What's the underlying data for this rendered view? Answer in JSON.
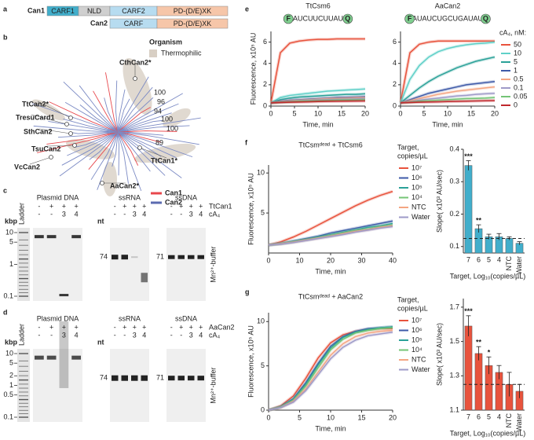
{
  "panels": [
    "a",
    "b",
    "c",
    "d",
    "e",
    "f",
    "g"
  ],
  "domains": [
    {
      "name": "Can1",
      "parts": [
        "CARF1",
        "NLD",
        "CARF2",
        "PD-(D/E)XK"
      ]
    },
    {
      "name": "Can2",
      "parts": [
        "CARF",
        "PD-(D/E)XK"
      ]
    }
  ],
  "tree": {
    "legend_title": "Organism",
    "thermophilic": "Thermophilic",
    "leaves": [
      "CthCan2*",
      "TtCan2*",
      "TresuCard1",
      "SthCan2",
      "TsuCan2",
      "VcCan2",
      "TtCan1*",
      "AaCan2*"
    ],
    "support": [
      100,
      96,
      94,
      100,
      100,
      89
    ],
    "groups": [
      "Can1",
      "Can2"
    ],
    "group_colors": [
      "#e8474c",
      "#5b6bb0"
    ]
  },
  "gels": [
    {
      "ladder": "Ladder",
      "enzyme": "TtCan1",
      "cofactor": "cA₄",
      "enzyme_signs": [
        "-",
        "+",
        "+",
        "+"
      ],
      "cofactor_signs": [
        "-",
        "-",
        "3",
        "4"
      ],
      "buffer": "Mn²⁺-buffer",
      "dna": {
        "title": "Plasmid DNA",
        "unit": "kbp",
        "markers": [
          10,
          5,
          1,
          0.1
        ]
      },
      "rna": {
        "title": "ssRNA",
        "unit": "nt",
        "marker": 74
      },
      "ssdna": {
        "title": "ssDNA",
        "marker": 71
      }
    },
    {
      "ladder": "Ladder",
      "enzyme": "AaCan2",
      "cofactor": "cA₄",
      "enzyme_signs": [
        "-",
        "+",
        "+",
        "+"
      ],
      "cofactor_signs": [
        "-",
        "-",
        "3",
        "4"
      ],
      "buffer": "Mn²⁺-buffer",
      "dna": {
        "title": "Plasmid DNA",
        "unit": "kbp",
        "markers": [
          10,
          5,
          2,
          1,
          0.5,
          0.1
        ]
      },
      "rna": {
        "title": "ssRNA",
        "unit": "nt",
        "marker": 74
      },
      "ssdna": {
        "title": "ssDNA",
        "marker": 71
      }
    }
  ],
  "chart_data": [
    {
      "type": "line",
      "title": "TtCsm6",
      "probe": {
        "fluor": "F",
        "sequence": "-AUCUUCUUAU-",
        "quencher": "Q"
      },
      "xlabel": "Time, min",
      "ylabel": "Fluorescence, x10⁵ AU",
      "x": [
        0,
        2,
        4,
        6,
        8,
        10,
        12,
        14,
        16,
        18,
        20
      ],
      "xlim": [
        0,
        20
      ],
      "xticks": [
        0,
        5,
        10,
        15,
        20
      ],
      "ylim": [
        0,
        7
      ],
      "yticks": [
        0,
        2,
        4,
        6
      ],
      "series": [
        {
          "color": "#e8533d",
          "values": [
            0.3,
            5.0,
            5.9,
            6.1,
            6.2,
            6.25,
            6.25,
            6.3,
            6.3,
            6.3,
            6.3
          ]
        },
        {
          "color": "#5fd0c8",
          "values": [
            0.3,
            0.8,
            1.0,
            1.1,
            1.2,
            1.3,
            1.4,
            1.45,
            1.5,
            1.55,
            1.6
          ]
        },
        {
          "color": "#2aa198",
          "values": [
            0.3,
            0.6,
            0.75,
            0.85,
            0.9,
            0.95,
            1.0,
            1.05,
            1.1,
            1.1,
            1.15
          ]
        },
        {
          "color": "#3e5aa8",
          "values": [
            0.3,
            0.45,
            0.55,
            0.6,
            0.65,
            0.7,
            0.75,
            0.8,
            0.82,
            0.85,
            0.88
          ]
        },
        {
          "color": "#f4a582",
          "values": [
            0.3,
            0.4,
            0.5,
            0.55,
            0.6,
            0.65,
            0.7,
            0.72,
            0.75,
            0.78,
            0.8
          ]
        },
        {
          "color": "#9e9ac8",
          "values": [
            0.3,
            0.38,
            0.45,
            0.5,
            0.55,
            0.58,
            0.6,
            0.62,
            0.65,
            0.67,
            0.7
          ]
        },
        {
          "color": "#74c476",
          "values": [
            0.3,
            0.35,
            0.4,
            0.45,
            0.48,
            0.5,
            0.52,
            0.55,
            0.57,
            0.58,
            0.6
          ]
        },
        {
          "color": "#c0282d",
          "values": [
            0.3,
            0.33,
            0.36,
            0.38,
            0.4,
            0.42,
            0.44,
            0.45,
            0.46,
            0.47,
            0.48
          ]
        }
      ]
    },
    {
      "type": "line",
      "title": "AaCan2",
      "probe": {
        "fluor": "F",
        "sequence": "-AUAUCUGCUGAUAU-",
        "quencher": "Q"
      },
      "xlabel": "Time, min",
      "legend_title": "cA₄, nM:",
      "x": [
        0,
        2,
        4,
        6,
        8,
        10,
        12,
        14,
        16,
        18,
        20
      ],
      "xlim": [
        0,
        20
      ],
      "xticks": [
        0,
        5,
        10,
        15,
        20
      ],
      "ylim": [
        0,
        7
      ],
      "yticks": [
        0,
        2,
        4,
        6
      ],
      "series": [
        {
          "name": "50",
          "color": "#e8533d",
          "values": [
            0.3,
            5.0,
            5.8,
            6.0,
            6.1,
            6.1,
            6.1,
            6.1,
            6.1,
            6.1,
            6.1
          ]
        },
        {
          "name": "10",
          "color": "#5fd0c8",
          "values": [
            0.3,
            2.5,
            3.8,
            4.6,
            5.1,
            5.4,
            5.6,
            5.75,
            5.85,
            5.9,
            6.0
          ]
        },
        {
          "name": "5",
          "color": "#2aa198",
          "values": [
            0.3,
            1.0,
            1.7,
            2.3,
            2.8,
            3.2,
            3.6,
            3.9,
            4.2,
            4.4,
            4.6
          ]
        },
        {
          "name": "1",
          "color": "#3e5aa8",
          "values": [
            0.3,
            0.6,
            0.9,
            1.2,
            1.4,
            1.6,
            1.8,
            2.0,
            2.1,
            2.2,
            2.3
          ]
        },
        {
          "name": "0.5",
          "color": "#f4a582",
          "values": [
            0.3,
            0.5,
            0.7,
            0.9,
            1.1,
            1.25,
            1.4,
            1.5,
            1.6,
            1.7,
            1.8
          ]
        },
        {
          "name": "0.1",
          "color": "#9e9ac8",
          "values": [
            0.3,
            0.4,
            0.55,
            0.65,
            0.75,
            0.85,
            0.95,
            1.0,
            1.1,
            1.15,
            1.2
          ]
        },
        {
          "name": "0.05",
          "color": "#74c476",
          "values": [
            0.3,
            0.35,
            0.45,
            0.5,
            0.55,
            0.6,
            0.65,
            0.7,
            0.72,
            0.75,
            0.8
          ]
        },
        {
          "name": "0",
          "color": "#c0282d",
          "values": [
            0.3,
            0.33,
            0.36,
            0.38,
            0.4,
            0.42,
            0.44,
            0.46,
            0.48,
            0.5,
            0.52
          ]
        }
      ]
    },
    {
      "type": "line",
      "title": "TtCsmᵈᵉᵃᵈ + TtCsm6",
      "xlabel": "Time, min",
      "ylabel": "Fluorescence, x10⁵ AU",
      "legend_title": [
        "Target,",
        "copies/µL"
      ],
      "x": [
        0,
        4,
        8,
        12,
        16,
        20,
        24,
        28,
        32,
        36,
        40
      ],
      "xlim": [
        0,
        40
      ],
      "xticks": [
        0,
        10,
        20,
        30,
        40
      ],
      "ylim": [
        0,
        11
      ],
      "yticks": [
        5,
        10
      ],
      "series": [
        {
          "name": "10⁷",
          "color": "#e8533d",
          "values": [
            1,
            1.4,
            2.0,
            2.7,
            3.5,
            4.3,
            5.1,
            5.9,
            6.6,
            7.2,
            7.7
          ]
        },
        {
          "name": "10⁶",
          "color": "#3e5aa8",
          "values": [
            1,
            1.2,
            1.5,
            1.8,
            2.1,
            2.5,
            2.8,
            3.1,
            3.4,
            3.7,
            4.0
          ]
        },
        {
          "name": "10⁵",
          "color": "#2aa198",
          "values": [
            1,
            1.2,
            1.45,
            1.7,
            2.0,
            2.3,
            2.6,
            2.9,
            3.2,
            3.4,
            3.7
          ]
        },
        {
          "name": "10⁴",
          "color": "#74c476",
          "values": [
            1,
            1.15,
            1.4,
            1.65,
            1.9,
            2.2,
            2.5,
            2.8,
            3.0,
            3.3,
            3.5
          ]
        },
        {
          "name": "NTC",
          "color": "#f4a582",
          "values": [
            1,
            1.15,
            1.35,
            1.6,
            1.85,
            2.1,
            2.4,
            2.7,
            2.9,
            3.2,
            3.4
          ]
        },
        {
          "name": "Water",
          "color": "#9e9ac8",
          "values": [
            1,
            1.1,
            1.3,
            1.55,
            1.8,
            2.05,
            2.3,
            2.6,
            2.85,
            3.1,
            3.3
          ]
        }
      ]
    },
    {
      "type": "bar",
      "categories": [
        "7",
        "6",
        "5",
        "4",
        "NTC",
        "Water"
      ],
      "values": [
        0.35,
        0.155,
        0.13,
        0.13,
        0.125,
        0.11
      ],
      "errors": [
        0.015,
        0.012,
        0.008,
        0.01,
        0.005,
        0.005
      ],
      "significance": [
        "***",
        "**",
        null,
        null,
        null,
        null
      ],
      "reference_line": 0.125,
      "color": "#41aecb",
      "ylim": [
        0.08,
        0.4
      ],
      "yticks": [
        0.1,
        0.2,
        0.3,
        0.4
      ],
      "ylabel": "Slope( x10³ AU/sec)",
      "xlabel": "Target, Log₁₀(copies/µL)"
    },
    {
      "type": "line",
      "title": "TtCsmᵈᵉᵃᵈ + AaCan2",
      "xlabel": "Time, min",
      "ylabel": "Fluorescence, x10⁵ AU",
      "legend_title": [
        "Target,",
        "copies/µL"
      ],
      "x": [
        0,
        2,
        4,
        6,
        8,
        10,
        12,
        14,
        16,
        18,
        20
      ],
      "xlim": [
        0,
        20
      ],
      "xticks": [
        0,
        5,
        10,
        15,
        20
      ],
      "ylim": [
        0,
        11
      ],
      "yticks": [
        0,
        5,
        10
      ],
      "series": [
        {
          "name": "10⁷",
          "color": "#e8533d",
          "values": [
            0,
            0.5,
            1.6,
            3.6,
            5.9,
            7.6,
            8.5,
            8.9,
            9.1,
            9.2,
            9.2
          ]
        },
        {
          "name": "10⁶",
          "color": "#3e5aa8",
          "values": [
            0,
            0.4,
            1.3,
            3.1,
            5.3,
            7.2,
            8.3,
            8.9,
            9.2,
            9.3,
            9.4
          ]
        },
        {
          "name": "10⁵",
          "color": "#2aa198",
          "values": [
            0,
            0.4,
            1.2,
            2.9,
            5.1,
            7.0,
            8.2,
            8.8,
            9.1,
            9.3,
            9.4
          ]
        },
        {
          "name": "10⁴",
          "color": "#74c476",
          "values": [
            0,
            0.35,
            1.1,
            2.7,
            4.8,
            6.8,
            8.0,
            8.7,
            9.0,
            9.2,
            9.3
          ]
        },
        {
          "name": "NTC",
          "color": "#f4a582",
          "values": [
            0,
            0.3,
            1.0,
            2.4,
            4.3,
            6.2,
            7.5,
            8.3,
            8.7,
            8.9,
            9.0
          ]
        },
        {
          "name": "Water",
          "color": "#9e9ac8",
          "values": [
            0,
            0.3,
            0.9,
            2.2,
            4.0,
            5.8,
            7.1,
            7.9,
            8.4,
            8.6,
            8.8
          ]
        }
      ]
    },
    {
      "type": "bar",
      "categories": [
        "7",
        "6",
        "5",
        "4",
        "NTC",
        "Water"
      ],
      "values": [
        1.59,
        1.43,
        1.36,
        1.32,
        1.25,
        1.21
      ],
      "errors": [
        0.06,
        0.04,
        0.05,
        0.04,
        0.07,
        0.04
      ],
      "significance": [
        "***",
        "**",
        "*",
        null,
        null,
        null
      ],
      "reference_line": 1.25,
      "color": "#e8533d",
      "ylim": [
        1.1,
        1.75
      ],
      "yticks": [
        1.1,
        1.3,
        1.5,
        1.7
      ],
      "ylabel": "Slope( x10³ AU/sec)",
      "xlabel": "Target, Log₁₀(copies/µL)"
    }
  ]
}
